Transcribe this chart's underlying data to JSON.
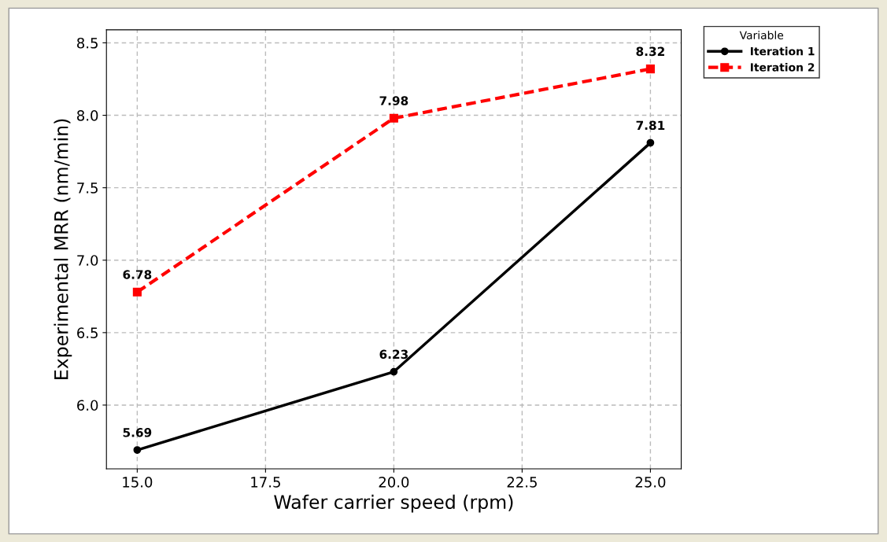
{
  "chart_data": {
    "type": "line",
    "xlabel": "Wafer carrier speed (rpm)",
    "ylabel": "Experimental MRR (nm/min)",
    "legend_title": "Variable",
    "x": [
      15,
      20,
      25
    ],
    "series": [
      {
        "name": "Iteration 1",
        "color": "#000000",
        "values": [
          5.69,
          6.23,
          7.81
        ],
        "marker": "circle",
        "line_style": "solid"
      },
      {
        "name": "Iteration 2",
        "color": "#ff0000",
        "values": [
          6.78,
          7.98,
          8.32
        ],
        "marker": "square",
        "line_style": "dashed"
      }
    ],
    "xlim": [
      14.4,
      25.6
    ],
    "xticks": [
      {
        "value": 15,
        "label": "15.0"
      },
      {
        "value": 17.5,
        "label": "17.5"
      },
      {
        "value": 20,
        "label": "20.0"
      },
      {
        "value": 22.5,
        "label": "22.5"
      },
      {
        "value": 25,
        "label": "25.0"
      }
    ],
    "ylim": [
      5.56,
      8.59
    ],
    "yticks": [
      {
        "value": 6,
        "label": "6.0"
      },
      {
        "value": 6.5,
        "label": "6.5"
      },
      {
        "value": 7,
        "label": "7.0"
      },
      {
        "value": 7.5,
        "label": "7.5"
      },
      {
        "value": 8,
        "label": "8.0"
      },
      {
        "value": 8.5,
        "label": "8.5"
      }
    ],
    "grid": true,
    "legend": "top right",
    "data_labels": true
  }
}
